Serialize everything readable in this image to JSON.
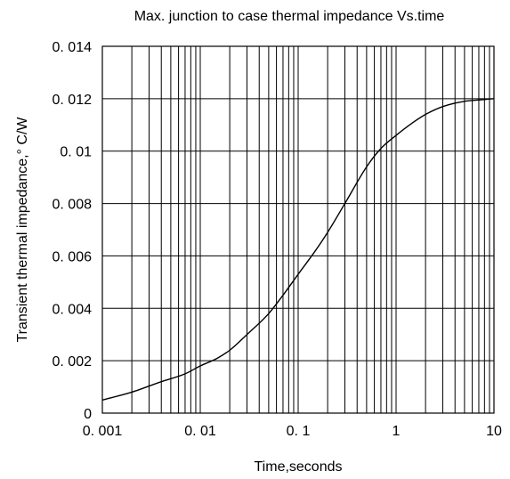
{
  "chart_data": {
    "type": "line",
    "title": "Max. junction to case thermal impedance Vs.time",
    "xlabel": "Time,seconds",
    "ylabel": "Transient thermal impedance,° C/W",
    "x_scale": "log",
    "xlim": [
      0.001,
      10
    ],
    "ylim": [
      0,
      0.014
    ],
    "grid": true,
    "x_ticks": [
      0.001,
      0.01,
      0.1,
      1,
      10
    ],
    "x_tick_labels": [
      "0. 001",
      "0. 01",
      "0. 1",
      "1",
      "10"
    ],
    "y_ticks": [
      0,
      0.002,
      0.004,
      0.006,
      0.008,
      0.01,
      0.012,
      0.014
    ],
    "y_tick_labels": [
      "0",
      "0. 002",
      "0. 004",
      "0. 006",
      "0. 008",
      "0. 01",
      "0. 012",
      "0. 014"
    ],
    "series": [
      {
        "x": [
          0.001,
          0.002,
          0.004,
          0.007,
          0.01,
          0.015,
          0.02,
          0.03,
          0.05,
          0.07,
          0.1,
          0.15,
          0.2,
          0.3,
          0.5,
          0.7,
          1,
          1.5,
          2,
          3,
          5,
          7,
          10
        ],
        "y": [
          0.0005,
          0.0008,
          0.0012,
          0.0015,
          0.0018,
          0.0021,
          0.0024,
          0.003,
          0.0038,
          0.0045,
          0.0053,
          0.0062,
          0.0069,
          0.008,
          0.0094,
          0.0101,
          0.0106,
          0.0111,
          0.0114,
          0.0117,
          0.0119,
          0.01195,
          0.012
        ],
        "color": "#000000"
      }
    ]
  }
}
